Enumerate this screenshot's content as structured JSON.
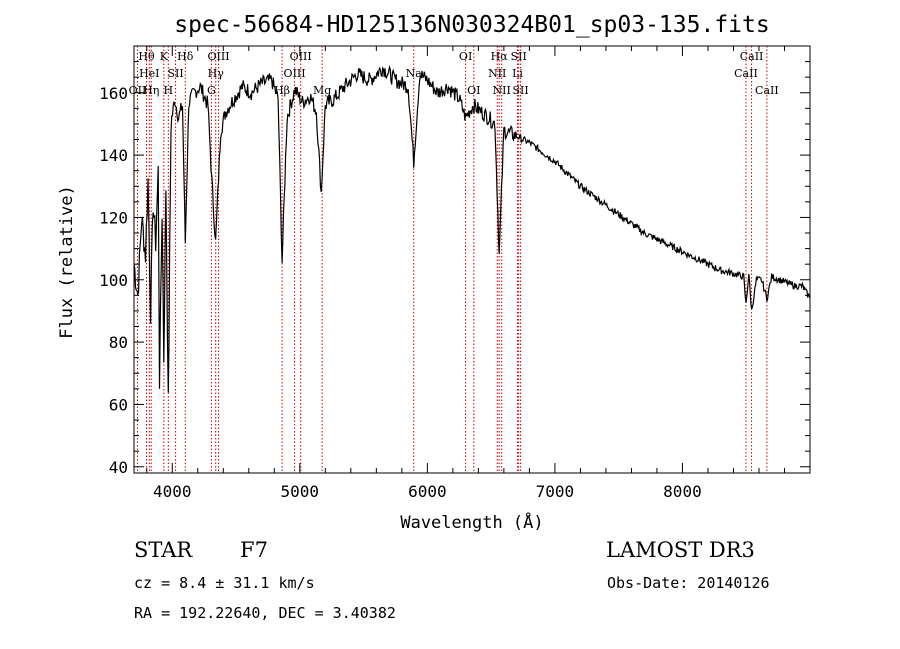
{
  "chart_data": {
    "type": "line",
    "title": "spec-56684-HD125136N030324B01_sp03-135.fits",
    "xlabel": "Wavelength (Å)",
    "ylabel": "Flux (relative)",
    "xlim": [
      3700,
      9000
    ],
    "ylim": [
      38,
      175
    ],
    "x_ticks": [
      4000,
      5000,
      6000,
      7000,
      8000
    ],
    "x_tick_labels": [
      "4000",
      "5000",
      "6000",
      "7000",
      "8000"
    ],
    "y_ticks": [
      40,
      60,
      80,
      100,
      120,
      140,
      160
    ],
    "y_tick_labels": [
      "40",
      "60",
      "80",
      "100",
      "120",
      "140",
      "160"
    ],
    "series": [
      {
        "name": "spectrum",
        "x": [
          3700,
          3730,
          3760,
          3790,
          3810,
          3830,
          3850,
          3870,
          3890,
          3900,
          3920,
          3934,
          3950,
          3969,
          3990,
          4020,
          4050,
          4080,
          4102,
          4130,
          4170,
          4220,
          4280,
          4310,
          4340,
          4380,
          4420,
          4480,
          4550,
          4620,
          4700,
          4780,
          4830,
          4861,
          4900,
          4960,
          5020,
          5080,
          5130,
          5168,
          5200,
          5270,
          5350,
          5450,
          5550,
          5650,
          5750,
          5850,
          5893,
          5940,
          6000,
          6080,
          6160,
          6250,
          6300,
          6360,
          6420,
          6480,
          6530,
          6563,
          6600,
          6650,
          6700,
          6750,
          6800,
          6900,
          7000,
          7100,
          7200,
          7300,
          7400,
          7500,
          7600,
          7700,
          7800,
          7900,
          8000,
          8100,
          8200,
          8300,
          8400,
          8480,
          8498,
          8520,
          8542,
          8580,
          8620,
          8662,
          8700,
          8760,
          8820,
          8880,
          8940,
          9000
        ],
        "values": [
          105,
          95,
          120,
          108,
          132,
          90,
          125,
          112,
          135,
          68,
          122,
          75,
          130,
          60,
          150,
          158,
          152,
          156,
          112,
          157,
          160,
          162,
          156,
          132,
          112,
          148,
          154,
          158,
          162,
          160,
          163,
          164,
          158,
          106,
          152,
          161,
          157,
          159,
          154,
          128,
          156,
          158,
          162,
          166,
          164,
          168,
          164,
          162,
          138,
          166,
          164,
          160,
          162,
          158,
          152,
          156,
          154,
          152,
          150,
          108,
          148,
          147,
          146,
          145,
          144,
          141,
          138,
          134,
          130,
          127,
          124,
          121,
          118,
          115,
          113,
          111,
          109,
          107,
          105,
          103,
          102,
          101,
          92,
          102,
          90,
          100,
          100,
          94,
          101,
          100,
          99,
          98,
          98,
          94
        ]
      }
    ],
    "spectral_lines": [
      {
        "x": 3727,
        "labels": [
          "OII"
        ],
        "row": 2
      },
      {
        "x": 3798,
        "labels": [
          "Hθ"
        ],
        "row": 0
      },
      {
        "x": 3820,
        "labels": [
          "HeI"
        ],
        "row": 1
      },
      {
        "x": 3835,
        "labels": [
          "Hη"
        ],
        "row": 2
      },
      {
        "x": 3934,
        "labels": [
          "K"
        ],
        "row": 0
      },
      {
        "x": 3969,
        "labels": [
          "H"
        ],
        "row": 2
      },
      {
        "x": 4026,
        "labels": [
          "SII"
        ],
        "row": 1
      },
      {
        "x": 4102,
        "labels": [
          "Hδ"
        ],
        "row": 0
      },
      {
        "x": 4307,
        "labels": [
          "G"
        ],
        "row": 2
      },
      {
        "x": 4341,
        "labels": [
          "Hγ"
        ],
        "row": 1
      },
      {
        "x": 4363,
        "labels": [
          "OIII"
        ],
        "row": 0
      },
      {
        "x": 4861,
        "labels": [
          "Hβ"
        ],
        "row": 2
      },
      {
        "x": 4959,
        "labels": [
          "OIII"
        ],
        "row": 1
      },
      {
        "x": 5007,
        "labels": [
          "OIII"
        ],
        "row": 0
      },
      {
        "x": 5175,
        "labels": [
          "Mg"
        ],
        "row": 2
      },
      {
        "x": 5893,
        "labels": [
          "Na"
        ],
        "row": 1
      },
      {
        "x": 6300,
        "labels": [
          "OI"
        ],
        "row": 0
      },
      {
        "x": 6364,
        "labels": [
          "OI"
        ],
        "row": 2
      },
      {
        "x": 6548,
        "labels": [
          "NII"
        ],
        "row": 1
      },
      {
        "x": 6563,
        "labels": [
          "Hα"
        ],
        "row": 0
      },
      {
        "x": 6583,
        "labels": [
          "NII"
        ],
        "row": 2
      },
      {
        "x": 6707,
        "labels": [
          "Li"
        ],
        "row": 1
      },
      {
        "x": 6716,
        "labels": [
          "SII"
        ],
        "row": 0
      },
      {
        "x": 6731,
        "labels": [
          "SII"
        ],
        "row": 2
      },
      {
        "x": 8498,
        "labels": [
          "CaII"
        ],
        "row": 1
      },
      {
        "x": 8542,
        "labels": [
          "CaII"
        ],
        "row": 0
      },
      {
        "x": 8662,
        "labels": [
          "CaII"
        ],
        "row": 2
      }
    ]
  },
  "info": {
    "class": "STAR",
    "subclass": "F7",
    "survey": "LAMOST DR3",
    "cz_line": "cz = 8.4 ± 31.1 km/s",
    "obs_date": "Obs-Date: 20140126",
    "coord_line": "RA = 192.22640, DEC =   3.40382"
  },
  "colors": {
    "spectrum": "#000000",
    "line_markers": "#cc0000",
    "axes": "#000000"
  }
}
